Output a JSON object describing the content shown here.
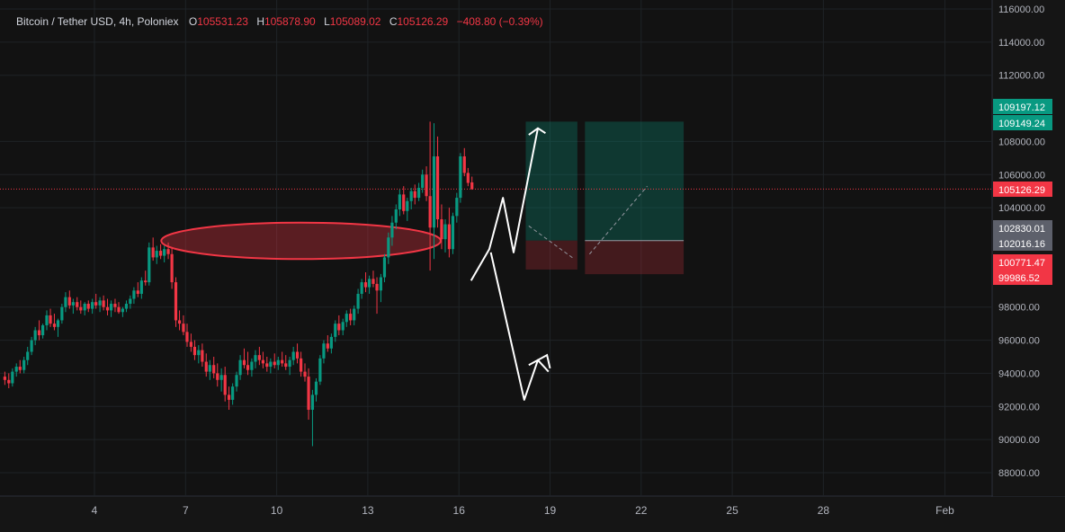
{
  "legend": {
    "symbol": "Bitcoin / Tether USD, 4h, Poloniex",
    "open_label": "O",
    "open": "105531.23",
    "high_label": "H",
    "high": "105878.90",
    "low_label": "L",
    "low": "105089.02",
    "close_label": "C",
    "close": "105126.29",
    "change": "−408.80 (−0.39%)"
  },
  "colors": {
    "background": "#151515",
    "up": "#089981",
    "down": "#f23645",
    "grid": "#1f2326",
    "axis_text": "#b2b5be",
    "ellipse": "#f23645",
    "profit_zone": "#089981",
    "loss_zone": "#f23645",
    "arrows": "#ffffff"
  },
  "chart_data": {
    "type": "candlestick",
    "timeframe": "4h",
    "y_ticks": [
      "116000.00",
      "114000.00",
      "112000.00",
      "108000.00",
      "106000.00",
      "104000.00",
      "98000.00",
      "96000.00",
      "94000.00",
      "92000.00",
      "90000.00",
      "88000.00"
    ],
    "y_range": [
      86500,
      116500
    ],
    "x_ticks": [
      "4",
      "7",
      "10",
      "13",
      "16",
      "19",
      "22",
      "25",
      "28",
      "Feb"
    ],
    "price_labels": [
      {
        "text": "109197.12",
        "value": 109197.12,
        "kind": "up"
      },
      {
        "text": "109149.24",
        "value": 109149.24,
        "kind": "up"
      },
      {
        "text": "105126.29",
        "value": 105126.29,
        "kind": "down"
      },
      {
        "text": "102830.01",
        "value": 102830.01,
        "kind": "gray"
      },
      {
        "text": "102016.16",
        "value": 102016.16,
        "kind": "gray"
      },
      {
        "text": "100771.47",
        "value": 100771.47,
        "kind": "down"
      },
      {
        "text": "99986.52",
        "value": 99986.52,
        "kind": "down"
      }
    ],
    "series": [
      {
        "name": "BTCUSDT",
        "ohlc": [
          [
            1.05,
            93800,
            94100,
            93300,
            93600
          ],
          [
            1.18,
            93600,
            94000,
            93100,
            93400
          ],
          [
            1.3,
            93400,
            94300,
            93200,
            94100
          ],
          [
            1.43,
            94100,
            94600,
            93800,
            94400
          ],
          [
            1.55,
            94400,
            94800,
            94000,
            94200
          ],
          [
            1.68,
            94200,
            95000,
            94000,
            94800
          ],
          [
            1.8,
            94800,
            95600,
            94500,
            95300
          ],
          [
            1.93,
            95300,
            96200,
            95100,
            96000
          ],
          [
            2.05,
            96000,
            96800,
            95700,
            96600
          ],
          [
            2.18,
            96600,
            97200,
            96000,
            96300
          ],
          [
            2.3,
            96300,
            97000,
            96100,
            96900
          ],
          [
            2.43,
            96900,
            97800,
            96600,
            97500
          ],
          [
            2.55,
            97500,
            97900,
            96800,
            97000
          ],
          [
            2.68,
            97000,
            97600,
            96600,
            96800
          ],
          [
            2.8,
            96800,
            97300,
            96200,
            97200
          ],
          [
            2.93,
            97200,
            98200,
            97000,
            98000
          ],
          [
            3.05,
            98000,
            98900,
            97700,
            98600
          ],
          [
            3.18,
            98600,
            99000,
            97900,
            98100
          ],
          [
            3.3,
            98100,
            98500,
            97600,
            98300
          ],
          [
            3.43,
            98300,
            98600,
            97800,
            98000
          ],
          [
            3.55,
            98000,
            98400,
            97600,
            97800
          ],
          [
            3.68,
            97800,
            98300,
            97500,
            98200
          ],
          [
            3.8,
            98200,
            98400,
            97700,
            97900
          ],
          [
            3.93,
            97900,
            98500,
            97600,
            98300
          ],
          [
            4.05,
            98300,
            98800,
            97900,
            98100
          ],
          [
            4.18,
            98100,
            98600,
            97700,
            98400
          ],
          [
            4.3,
            98400,
            98700,
            97800,
            98000
          ],
          [
            4.43,
            98000,
            98500,
            97500,
            97800
          ],
          [
            4.55,
            97800,
            98400,
            97400,
            98200
          ],
          [
            4.68,
            98200,
            98500,
            97700,
            98000
          ],
          [
            4.8,
            98000,
            98300,
            97600,
            97700
          ],
          [
            4.93,
            97700,
            98000,
            97400,
            97900
          ],
          [
            5.05,
            97900,
            98400,
            97700,
            98200
          ],
          [
            5.18,
            98200,
            98700,
            97900,
            98500
          ],
          [
            5.3,
            98500,
            99200,
            98200,
            99000
          ],
          [
            5.43,
            99000,
            99500,
            98600,
            98800
          ],
          [
            5.55,
            98800,
            99800,
            98500,
            99600
          ],
          [
            5.68,
            99600,
            100200,
            99300,
            99500
          ],
          [
            5.8,
            99500,
            101900,
            99300,
            101600
          ],
          [
            5.93,
            101600,
            102200,
            100800,
            101000
          ],
          [
            6.05,
            101000,
            101700,
            100600,
            101400
          ],
          [
            6.18,
            101400,
            101800,
            100900,
            101100
          ],
          [
            6.3,
            101100,
            101700,
            100700,
            101500
          ],
          [
            6.43,
            101500,
            101900,
            100900,
            101200
          ],
          [
            6.55,
            101200,
            101600,
            99100,
            99500
          ],
          [
            6.68,
            99500,
            99800,
            96800,
            97200
          ],
          [
            6.8,
            97200,
            97800,
            96600,
            97000
          ],
          [
            6.93,
            97000,
            97500,
            96300,
            96500
          ],
          [
            7.05,
            96500,
            97000,
            95600,
            95900
          ],
          [
            7.18,
            95900,
            96400,
            95300,
            95600
          ],
          [
            7.3,
            95600,
            96000,
            94800,
            95100
          ],
          [
            7.43,
            95100,
            95700,
            94600,
            95400
          ],
          [
            7.55,
            95400,
            95800,
            94400,
            94700
          ],
          [
            7.68,
            94700,
            95200,
            93800,
            94100
          ],
          [
            7.8,
            94100,
            94800,
            93600,
            94500
          ],
          [
            7.93,
            94500,
            95000,
            93700,
            94000
          ],
          [
            8.05,
            94000,
            94600,
            93200,
            93600
          ],
          [
            8.18,
            93600,
            94300,
            92900,
            93900
          ],
          [
            8.3,
            93900,
            94400,
            92300,
            92700
          ],
          [
            8.43,
            92700,
            93200,
            91800,
            92400
          ],
          [
            8.55,
            92400,
            93400,
            92100,
            93200
          ],
          [
            8.68,
            93200,
            94100,
            92900,
            93900
          ],
          [
            8.8,
            93900,
            95100,
            93600,
            94800
          ],
          [
            8.93,
            94800,
            95500,
            94300,
            94500
          ],
          [
            9.05,
            94500,
            95300,
            93900,
            94200
          ],
          [
            9.18,
            94200,
            94900,
            93800,
            94700
          ],
          [
            9.3,
            94700,
            95400,
            94300,
            95100
          ],
          [
            9.43,
            95100,
            95600,
            94500,
            94800
          ],
          [
            9.55,
            94800,
            95300,
            94300,
            94600
          ],
          [
            9.68,
            94600,
            95000,
            94100,
            94400
          ],
          [
            9.8,
            94400,
            94900,
            94000,
            94700
          ],
          [
            9.93,
            94700,
            95200,
            94300,
            94500
          ],
          [
            10.05,
            94500,
            95000,
            94200,
            94800
          ],
          [
            10.18,
            94800,
            95300,
            94400,
            94600
          ],
          [
            10.3,
            94600,
            95100,
            94200,
            94400
          ],
          [
            10.43,
            94400,
            95000,
            93900,
            94800
          ],
          [
            10.55,
            94800,
            95600,
            94500,
            95300
          ],
          [
            10.68,
            95300,
            95800,
            94600,
            94900
          ],
          [
            10.8,
            94900,
            95300,
            93800,
            94100
          ],
          [
            10.93,
            94100,
            94600,
            93500,
            93800
          ],
          [
            11.05,
            93800,
            94300,
            91200,
            91800
          ],
          [
            11.18,
            91800,
            93000,
            89600,
            92700
          ],
          [
            11.3,
            92700,
            93700,
            92300,
            93500
          ],
          [
            11.43,
            93500,
            95100,
            93300,
            94900
          ],
          [
            11.55,
            94900,
            96000,
            94600,
            95800
          ],
          [
            11.68,
            95800,
            96300,
            95300,
            95500
          ],
          [
            11.8,
            95500,
            96400,
            95200,
            96200
          ],
          [
            11.93,
            96200,
            97200,
            95900,
            97000
          ],
          [
            12.05,
            97000,
            97500,
            96300,
            96600
          ],
          [
            12.18,
            96600,
            97300,
            96300,
            97100
          ],
          [
            12.3,
            97100,
            97800,
            96800,
            97600
          ],
          [
            12.43,
            97600,
            97900,
            96900,
            97200
          ],
          [
            12.55,
            97200,
            98100,
            96900,
            97900
          ],
          [
            12.68,
            97900,
            99100,
            97600,
            98800
          ],
          [
            12.8,
            98800,
            99700,
            98500,
            99500
          ],
          [
            12.93,
            99500,
            100100,
            98900,
            99200
          ],
          [
            13.05,
            99200,
            99900,
            98800,
            99700
          ],
          [
            13.18,
            99700,
            100200,
            99200,
            99400
          ],
          [
            13.3,
            99400,
            99800,
            97600,
            99000
          ],
          [
            13.43,
            99000,
            100000,
            98300,
            99800
          ],
          [
            13.55,
            99800,
            101200,
            99500,
            101000
          ],
          [
            13.68,
            101000,
            102500,
            100600,
            102200
          ],
          [
            13.8,
            102200,
            103500,
            101700,
            103100
          ],
          [
            13.93,
            103100,
            104200,
            102700,
            103900
          ],
          [
            14.05,
            103900,
            105100,
            103500,
            104800
          ],
          [
            14.18,
            104800,
            105300,
            103600,
            103800
          ],
          [
            14.3,
            103800,
            104600,
            103200,
            104400
          ],
          [
            14.43,
            104400,
            105200,
            103900,
            105000
          ],
          [
            14.55,
            105000,
            105400,
            104200,
            104600
          ],
          [
            14.68,
            104600,
            105500,
            104400,
            105200
          ],
          [
            14.8,
            105200,
            106300,
            104900,
            106000
          ],
          [
            14.93,
            106000,
            106500,
            104400,
            104700
          ],
          [
            15.05,
            104700,
            109200,
            100200,
            102800
          ],
          [
            15.18,
            102800,
            109100,
            100900,
            107100
          ],
          [
            15.3,
            107100,
            108300,
            102800,
            103300
          ],
          [
            15.43,
            103300,
            104200,
            101500,
            102100
          ],
          [
            15.55,
            102100,
            103300,
            101300,
            103000
          ],
          [
            15.68,
            103000,
            104000,
            101000,
            101500
          ],
          [
            15.8,
            101500,
            103700,
            101200,
            103500
          ],
          [
            15.93,
            103500,
            104900,
            103100,
            104600
          ],
          [
            16.05,
            104600,
            107300,
            104300,
            107100
          ],
          [
            16.18,
            107100,
            107600,
            105900,
            106100
          ],
          [
            16.3,
            106100,
            106400,
            105300,
            105500
          ],
          [
            16.43,
            105531,
            105879,
            105089,
            105126
          ]
        ]
      }
    ],
    "overlays": {
      "ellipse_price_range": [
        100900,
        103100
      ],
      "ellipse_day_range": [
        6.2,
        15.4
      ],
      "position_entry": 102016.16,
      "position_target": 109197.12,
      "position_stop": 99986.52
    }
  }
}
